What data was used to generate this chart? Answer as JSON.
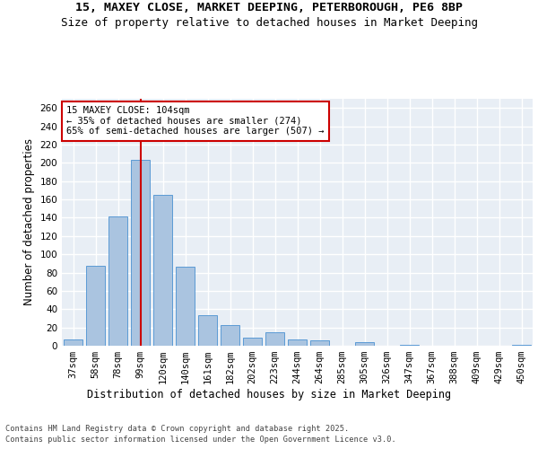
{
  "title_line1": "15, MAXEY CLOSE, MARKET DEEPING, PETERBOROUGH, PE6 8BP",
  "title_line2": "Size of property relative to detached houses in Market Deeping",
  "xlabel": "Distribution of detached houses by size in Market Deeping",
  "ylabel": "Number of detached properties",
  "categories": [
    "37sqm",
    "58sqm",
    "78sqm",
    "99sqm",
    "120sqm",
    "140sqm",
    "161sqm",
    "182sqm",
    "202sqm",
    "223sqm",
    "244sqm",
    "264sqm",
    "285sqm",
    "305sqm",
    "326sqm",
    "347sqm",
    "367sqm",
    "388sqm",
    "409sqm",
    "429sqm",
    "450sqm"
  ],
  "values": [
    7,
    87,
    141,
    203,
    165,
    86,
    33,
    23,
    9,
    15,
    7,
    6,
    0,
    4,
    0,
    1,
    0,
    0,
    0,
    0,
    1
  ],
  "bar_color": "#aac4e0",
  "bar_edge_color": "#5b9bd5",
  "vline_x": 3,
  "vline_color": "#cc0000",
  "annotation_text": "15 MAXEY CLOSE: 104sqm\n← 35% of detached houses are smaller (274)\n65% of semi-detached houses are larger (507) →",
  "annotation_box_color": "#ffffff",
  "annotation_box_edge": "#cc0000",
  "ylim": [
    0,
    270
  ],
  "yticks": [
    0,
    20,
    40,
    60,
    80,
    100,
    120,
    140,
    160,
    180,
    200,
    220,
    240,
    260
  ],
  "background_color": "#e8eef5",
  "grid_color": "#ffffff",
  "footer_line1": "Contains HM Land Registry data © Crown copyright and database right 2025.",
  "footer_line2": "Contains public sector information licensed under the Open Government Licence v3.0.",
  "title_fontsize": 9.5,
  "subtitle_fontsize": 9,
  "axis_label_fontsize": 8.5,
  "tick_fontsize": 7.5,
  "annotation_fontsize": 7.5,
  "footer_fontsize": 6.2
}
